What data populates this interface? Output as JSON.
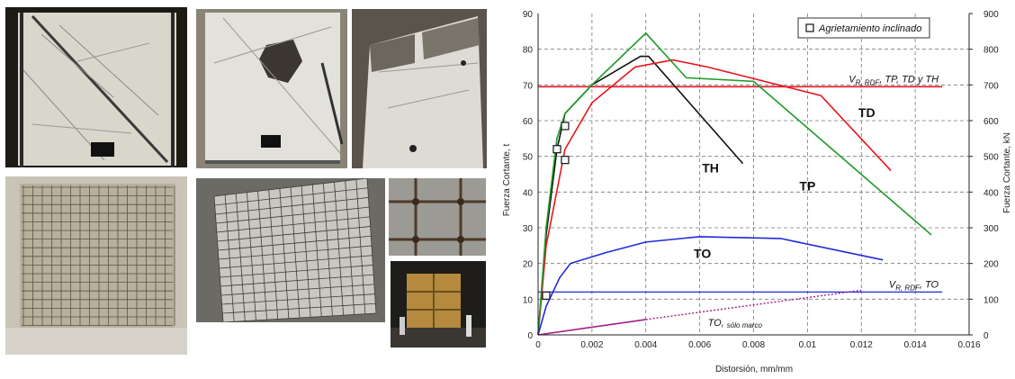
{
  "photos": [
    {
      "name": "photo-wall-diagonal-crack",
      "kind": "diagonal"
    },
    {
      "name": "photo-wall-crushed-center",
      "kind": "crushed"
    },
    {
      "name": "photo-wall-side-view",
      "kind": "side"
    },
    {
      "name": "photo-wall-mesh-rendered",
      "kind": "mesh"
    },
    {
      "name": "photo-wall-mesh-oblique",
      "kind": "mesh-oblique"
    },
    {
      "name": "photo-mesh-detail",
      "kind": "detail"
    },
    {
      "name": "photo-test-setup",
      "kind": "setup"
    }
  ],
  "chart_data": {
    "type": "line",
    "xlabel": "Distorsión, mm/mm",
    "ylabel_left": "Fuerza Cortante, t",
    "ylabel_right": "Fuerza Cortante, kN",
    "xlim": [
      0,
      0.016
    ],
    "ylim_left": [
      0,
      90
    ],
    "ylim_right": [
      0,
      900
    ],
    "x_ticks": [
      "0",
      "0.002",
      "0.004",
      "0.006",
      "0.008",
      "0.01",
      "0.012",
      "0.014",
      "0.016"
    ],
    "y_left_ticks": [
      "0",
      "10",
      "20",
      "30",
      "40",
      "50",
      "60",
      "70",
      "80",
      "90"
    ],
    "y_right_ticks": [
      "0",
      "100",
      "200",
      "300",
      "400",
      "500",
      "600",
      "700",
      "800",
      "900"
    ],
    "grid": true,
    "legend": {
      "label": "Agrietamiento inclinado",
      "placement": "top-right",
      "marker": "square"
    },
    "series": [
      {
        "name": "TH",
        "color": "#111111",
        "points": [
          [
            0,
            0
          ],
          [
            0.0003,
            28
          ],
          [
            0.0007,
            52
          ],
          [
            0.001,
            62
          ],
          [
            0.002,
            70
          ],
          [
            0.0038,
            78
          ],
          [
            0.0041,
            78
          ],
          [
            0.0076,
            48
          ]
        ]
      },
      {
        "name": "TD",
        "color": "#e8141c",
        "points": [
          [
            0,
            0
          ],
          [
            0.0003,
            25
          ],
          [
            0.001,
            52
          ],
          [
            0.002,
            65
          ],
          [
            0.0036,
            75
          ],
          [
            0.005,
            77
          ],
          [
            0.0063,
            75
          ],
          [
            0.0105,
            67
          ],
          [
            0.0131,
            46
          ]
        ]
      },
      {
        "name": "TP",
        "color": "#1e9a28",
        "points": [
          [
            0,
            0
          ],
          [
            0.0003,
            30
          ],
          [
            0.0007,
            55
          ],
          [
            0.001,
            62
          ],
          [
            0.002,
            70
          ],
          [
            0.004,
            84.5
          ],
          [
            0.0055,
            72
          ],
          [
            0.008,
            71
          ],
          [
            0.0146,
            28
          ]
        ]
      },
      {
        "name": "TO",
        "color": "#1f2bd8",
        "points": [
          [
            0,
            0
          ],
          [
            0.0003,
            8
          ],
          [
            0.0008,
            16
          ],
          [
            0.0012,
            20
          ],
          [
            0.0025,
            23
          ],
          [
            0.004,
            26
          ],
          [
            0.006,
            27.5
          ],
          [
            0.009,
            27
          ],
          [
            0.0128,
            21
          ]
        ]
      },
      {
        "name": "TO, sólo marco",
        "color": "#a0208a",
        "points": [
          [
            0,
            0
          ],
          [
            0.004,
            4.3
          ],
          [
            0.012,
            12.5
          ]
        ],
        "dashed_from_x": 0.004
      }
    ],
    "reference_lines": [
      {
        "label_main": "V",
        "label_sub": "R, RDF",
        "label_rest": ", TP, TD y TH",
        "y": 69.5,
        "color": "#e8141c"
      },
      {
        "label_main": "V",
        "label_sub": "R, RDF",
        "label_rest": ", TO",
        "y": 12,
        "color": "#1f2bd8"
      }
    ],
    "cracking_markers": [
      [
        0.0003,
        11
      ],
      [
        0.0007,
        52
      ],
      [
        0.001,
        58.5
      ],
      [
        0.001,
        49
      ]
    ],
    "series_labels": [
      {
        "text": "TH",
        "x": 0.0064,
        "y": 45.5
      },
      {
        "text": "TD",
        "x": 0.0122,
        "y": 61
      },
      {
        "text": "TP",
        "x": 0.01,
        "y": 40.5
      },
      {
        "text": "TO",
        "x": 0.0061,
        "y": 21.5
      }
    ],
    "frame_label": {
      "main": "TO,",
      "sub": "sólo marco",
      "x": 0.0063,
      "y": 2.5
    }
  }
}
